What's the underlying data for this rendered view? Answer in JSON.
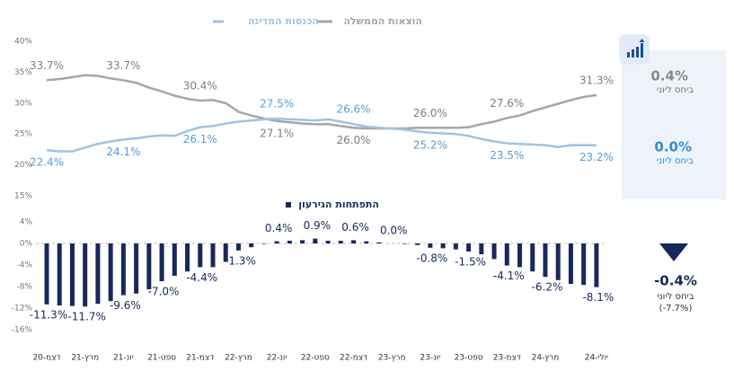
{
  "chart_data": [
    {
      "type": "line",
      "ylim": [
        15,
        40
      ],
      "yticks": [
        {
          "value": 40,
          "label": "40%"
        },
        {
          "value": 35,
          "label": "35%"
        },
        {
          "value": 30,
          "label": "30%"
        },
        {
          "value": 25,
          "label": "25%"
        },
        {
          "value": 20,
          "label": "20%"
        },
        {
          "value": 15,
          "label": "15%"
        }
      ],
      "series": [
        {
          "name": "הוצאות הממשלה",
          "color": "#a6a6a6",
          "values": [
            33.7,
            33.9,
            34.2,
            34.5,
            34.4,
            34.0,
            33.7,
            33.3,
            32.5,
            31.9,
            31.2,
            30.7,
            30.4,
            30.5,
            30.0,
            28.6,
            28.0,
            27.5,
            27.1,
            26.9,
            26.7,
            26.6,
            26.6,
            26.3,
            26.0,
            25.9,
            25.9,
            25.9,
            25.9,
            26.0,
            26.0,
            26.0,
            26.0,
            26.1,
            26.6,
            27.0,
            27.6,
            28.0,
            28.7,
            29.3,
            29.9,
            30.5,
            31.0,
            31.3
          ],
          "value_labels": [
            "33.7%",
            null,
            null,
            null,
            null,
            null,
            "33.7%",
            null,
            null,
            null,
            null,
            null,
            "30.4%",
            null,
            null,
            null,
            null,
            null,
            "27.1%",
            null,
            null,
            null,
            null,
            null,
            "26.0%",
            null,
            null,
            null,
            null,
            null,
            "26.0%",
            null,
            null,
            null,
            null,
            null,
            "27.6%",
            null,
            null,
            null,
            null,
            null,
            null,
            "31.3%"
          ]
        },
        {
          "name": "הכנסות המדינה",
          "color": "#9dc3e6",
          "values": [
            22.4,
            22.2,
            22.2,
            22.8,
            23.4,
            23.8,
            24.1,
            24.3,
            24.6,
            24.8,
            24.7,
            25.5,
            26.1,
            26.3,
            26.7,
            27.0,
            27.2,
            27.4,
            27.5,
            27.4,
            27.3,
            27.2,
            27.4,
            27.0,
            26.6,
            26.2,
            26.0,
            25.9,
            25.7,
            25.4,
            25.2,
            25.1,
            25.0,
            24.7,
            24.2,
            23.8,
            23.5,
            23.4,
            23.3,
            23.2,
            22.9,
            23.2,
            23.2,
            23.2
          ],
          "value_labels": [
            "22.4%",
            null,
            null,
            null,
            null,
            null,
            "24.1%",
            null,
            null,
            null,
            null,
            null,
            "26.1%",
            null,
            null,
            null,
            null,
            null,
            "27.5%",
            null,
            null,
            null,
            null,
            null,
            "26.6%",
            null,
            null,
            null,
            null,
            null,
            "25.2%",
            null,
            null,
            null,
            null,
            null,
            "23.5%",
            null,
            null,
            null,
            null,
            null,
            null,
            "23.2%"
          ]
        }
      ]
    },
    {
      "type": "bar",
      "title": "התפתחות הגירעון",
      "color": "#17295c",
      "ylim": [
        -16,
        4
      ],
      "yticks": [
        {
          "value": 4,
          "label": "4%"
        },
        {
          "value": 0,
          "label": "0%"
        },
        {
          "value": -4,
          "label": "-4%"
        },
        {
          "value": -8,
          "label": "-8%"
        },
        {
          "value": -12,
          "label": "-12%"
        },
        {
          "value": -16,
          "label": "-16%"
        }
      ],
      "categories": [
        "דצמ-20",
        null,
        null,
        "מרץ-21",
        null,
        null,
        "יונ-21",
        null,
        null,
        "ספט-21",
        null,
        null,
        "דצמ-21",
        null,
        null,
        "מרץ-22",
        null,
        null,
        "יונ-22",
        null,
        null,
        "ספט-22",
        null,
        null,
        "דצמ-22",
        null,
        null,
        "מרץ-23",
        null,
        null,
        "יונ-23",
        null,
        null,
        "ספט-23",
        null,
        null,
        "דצמ-23",
        null,
        null,
        "מרץ-24",
        null,
        null,
        null,
        "יולי-24"
      ],
      "values": [
        -11.3,
        -11.5,
        -11.6,
        -11.7,
        -11.2,
        -10.7,
        -9.6,
        -9.3,
        -8.5,
        -7.0,
        -6.0,
        -5.2,
        -4.4,
        -4.4,
        -3.4,
        -1.3,
        -0.7,
        -0.1,
        0.4,
        0.5,
        0.6,
        0.9,
        0.5,
        0.5,
        0.6,
        0.4,
        0.2,
        0.0,
        -0.1,
        -0.3,
        -0.8,
        -0.9,
        -1.1,
        -1.5,
        -2.0,
        -2.9,
        -4.1,
        -4.4,
        -5.2,
        -6.2,
        -6.8,
        -7.5,
        -7.7,
        -8.1
      ],
      "value_labels": [
        "-11.3%",
        null,
        null,
        "-11.7%",
        null,
        null,
        "-9.6%",
        null,
        null,
        "-7.0%",
        null,
        null,
        "-4.4%",
        null,
        null,
        "-1.3%",
        null,
        null,
        "0.4%",
        null,
        null,
        "0.9%",
        null,
        null,
        "0.6%",
        null,
        null,
        "0.0%",
        null,
        null,
        "-0.8%",
        null,
        null,
        "-1.5%",
        null,
        null,
        "-4.1%",
        null,
        null,
        "-6.2%",
        null,
        null,
        null,
        "-8.1%"
      ]
    }
  ],
  "side_panel": {
    "expense_change": "0.4%",
    "expense_note": "ביחס ליוני",
    "revenue_change": "0.0%",
    "revenue_note": "ביחס ליוני",
    "deficit_change": "-0.4%",
    "deficit_note": "ביחס ליוני",
    "deficit_level": "(-7.7%)"
  }
}
